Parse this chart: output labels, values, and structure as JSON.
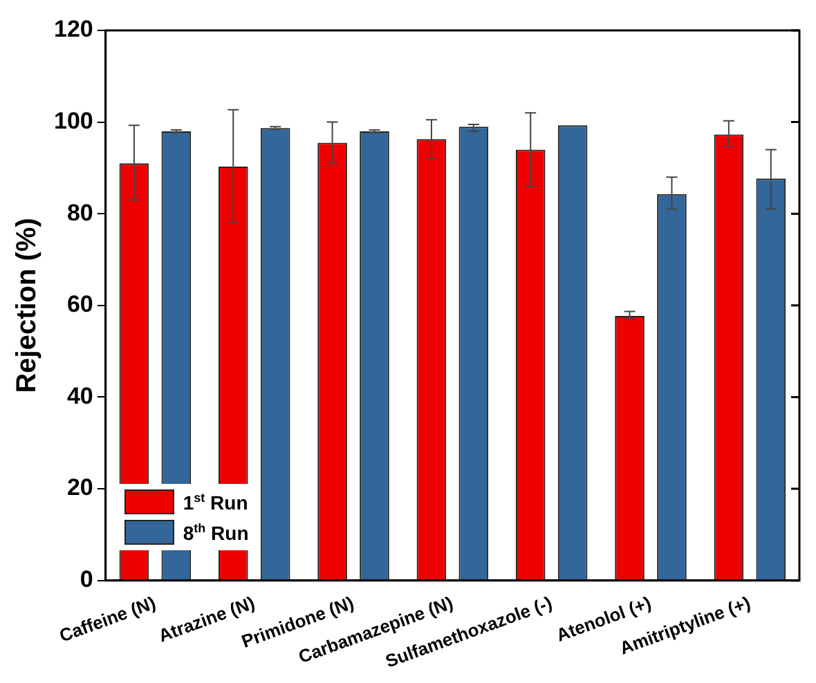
{
  "chart_data": {
    "type": "bar",
    "ylabel": "Rejection (%)",
    "categories": [
      "Caffeine (N)",
      "Atrazine (N)",
      "Primidone (N)",
      "Carbamazepine (N)",
      "Sulfamethoxazole (-)",
      "Atenolol (+)",
      "Amitriptyline (+)"
    ],
    "series": [
      {
        "name": "1$^{st}$ Run",
        "color": "#ee0000",
        "values": [
          91,
          90.3,
          95.5,
          96.3,
          94,
          57.7,
          97.3
        ],
        "errors": [
          [
            83,
            99.3
          ],
          [
            78,
            102.7
          ],
          [
            91,
            100
          ],
          [
            92,
            100.5
          ],
          [
            86,
            102
          ],
          [
            57,
            58.7
          ],
          [
            94.5,
            100.3
          ]
        ]
      },
      {
        "name": "8$^{th}$ Run",
        "color": "#336699",
        "values": [
          98,
          98.7,
          98,
          99,
          99.3,
          84.3,
          87.7
        ],
        "errors": [
          [
            97.7,
            98.3
          ],
          [
            98.4,
            99
          ],
          [
            97.7,
            98.3
          ],
          [
            98,
            99.5
          ],
          null,
          [
            81,
            88
          ],
          [
            81,
            94
          ]
        ]
      }
    ],
    "ylim": [
      0,
      120
    ],
    "yticks": [
      0,
      20,
      40,
      60,
      80,
      100,
      120
    ],
    "legend": "bottom left",
    "grid": false
  }
}
